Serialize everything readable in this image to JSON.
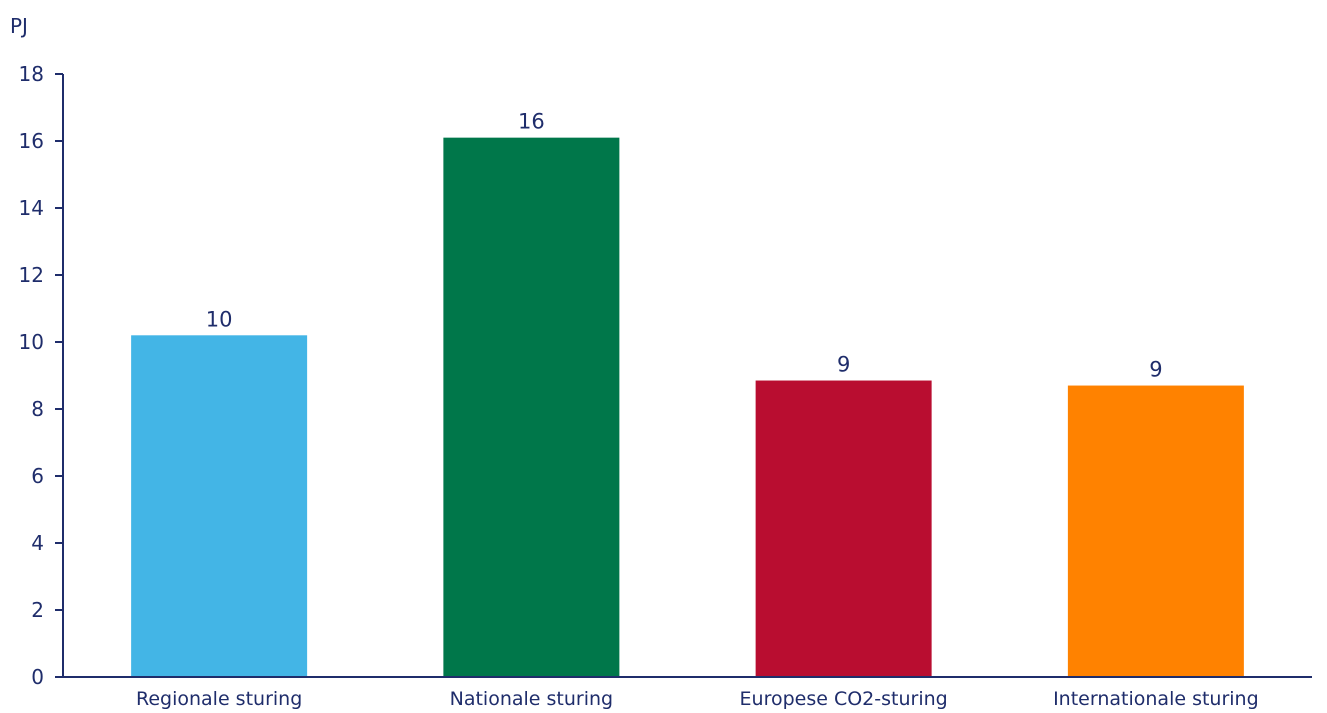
{
  "chart_data": {
    "type": "bar",
    "unit_label": "PJ",
    "categories": [
      "Regionale sturing",
      "Nationale sturing",
      "Europese CO2-sturing",
      "Internationale sturing"
    ],
    "values": [
      10.2,
      16.1,
      8.85,
      8.7
    ],
    "data_labels": [
      "10",
      "16",
      "9",
      "9"
    ],
    "colors": [
      "#43b5e6",
      "#00774a",
      "#b90d30",
      "#ff8200"
    ],
    "ylim": [
      0,
      18
    ],
    "yticks": [
      0,
      2,
      4,
      6,
      8,
      10,
      12,
      14,
      16,
      18
    ],
    "grid": false,
    "legend": "none"
  },
  "colors": {
    "axis": "#1f2d6b",
    "text": "#1f2d6b"
  }
}
